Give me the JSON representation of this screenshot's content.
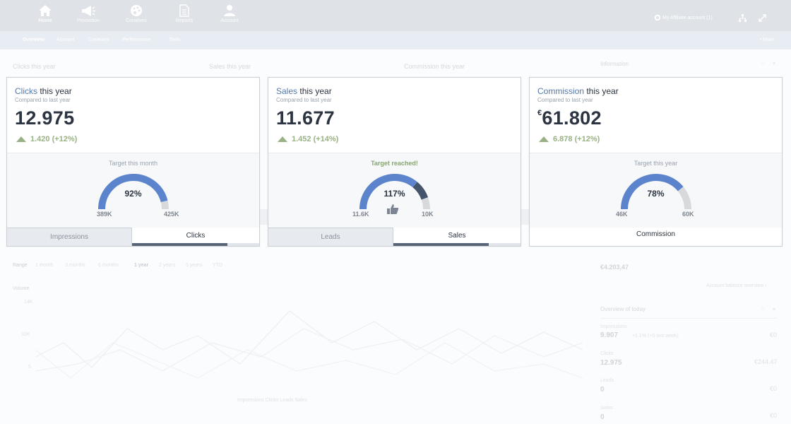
{
  "nav": {
    "items": [
      {
        "label": "Home",
        "icon": "home-icon"
      },
      {
        "label": "Promotion",
        "icon": "megaphone-icon"
      },
      {
        "label": "Creatives",
        "icon": "palette-icon"
      },
      {
        "label": "Reports",
        "icon": "document-icon"
      },
      {
        "label": "Account",
        "icon": "user-icon"
      }
    ],
    "account_label": "My",
    "account_name": "Affiliate account (1)"
  },
  "subnav": {
    "tabs": [
      "Overview",
      "Account",
      "Creatives",
      "Performance",
      "Tools"
    ],
    "more": "• More"
  },
  "background": {
    "headers": [
      "Clicks this year",
      "Sales this year",
      "Commission this year",
      "Information"
    ],
    "range_label": "Range",
    "range_options": [
      "1 month",
      "3 months",
      "6 months",
      "1 year",
      "2 years",
      "5 years",
      "YTD"
    ],
    "chart_ylabel": "Volume",
    "chart_yticks": [
      "14K",
      "10K",
      "5"
    ],
    "chart_legend": "Impressions  Clicks  Leads  Sales",
    "info_value": "€4.203,47",
    "info_link": "Account balance overview ›",
    "today_title": "Overview of today",
    "today_rows": [
      {
        "label": "Impressions",
        "value": "9.907",
        "extra": "+1.1% (+0 last week)",
        "right": "€0"
      },
      {
        "label": "Clicks",
        "value": "12.975",
        "extra": "",
        "right": "€244,47"
      },
      {
        "label": "Leads",
        "value": "0",
        "extra": "",
        "right": "€0"
      },
      {
        "label": "Sales",
        "value": "0",
        "extra": "",
        "right": "€0"
      }
    ]
  },
  "cards": [
    {
      "title_accent": "Clicks",
      "title_rest": " this year",
      "subtitle": "Compared to last year",
      "currency": "",
      "value": "12.975",
      "delta": "1.420 (+12%)",
      "target_label": "Target this month",
      "percent_text": "92%",
      "percent": 0.92,
      "min": "389K",
      "max": "425K",
      "tabs": [
        "Impressions",
        "Clicks"
      ],
      "active_tab_progress": 0.75
    },
    {
      "title_accent": "Sales",
      "title_rest": " this year",
      "subtitle": "Compared to last year",
      "currency": "",
      "value": "11.677",
      "delta": "1.452 (+14%)",
      "target_label": "Target reached!",
      "percent_text": "117%",
      "percent": 1.17,
      "min": "11.6K",
      "max": "10K",
      "tabs": [
        "Leads",
        "Sales"
      ],
      "active_tab_progress": 0.75
    },
    {
      "title_accent": "Commission",
      "title_rest": " this year",
      "subtitle": "Compared to last year",
      "currency": "€",
      "value": "61.802",
      "delta": "6.878 (+12%)",
      "target_label": "Target this year",
      "percent_text": "78%",
      "percent": 0.78,
      "min": "46K",
      "max": "60K",
      "tabs": [
        "Commission"
      ]
    }
  ],
  "colors": {
    "gauge_fill": "#5b84cc",
    "gauge_track": "#d7d9dc",
    "gauge_over": "#44556b",
    "positive": "#99b285"
  }
}
